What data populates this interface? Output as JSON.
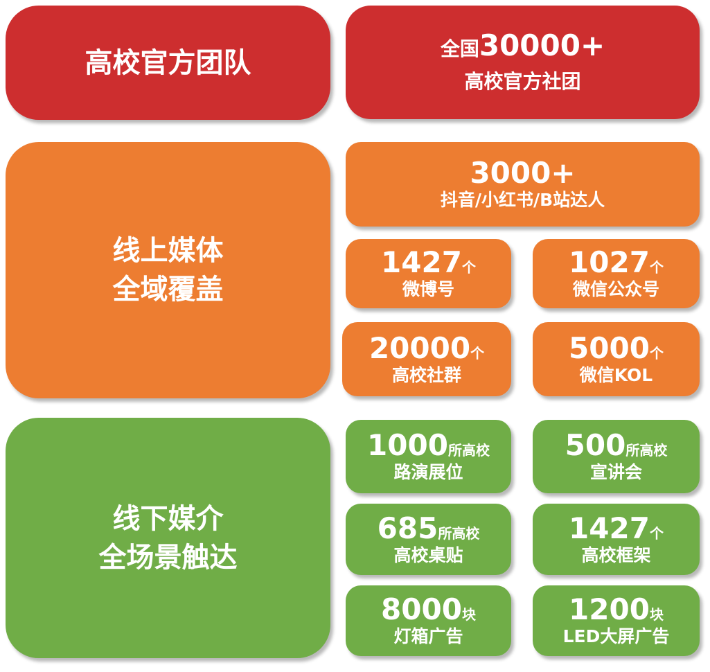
{
  "colors": {
    "red": "#CD2E2F",
    "orange": "#ED7D31",
    "green": "#70AD47"
  },
  "sections": {
    "official": {
      "title": "高校官方团队",
      "tile": {
        "prefix": "全国",
        "number": "30000+",
        "label": "高校官方社团"
      }
    },
    "online": {
      "title_line1": "线上媒体",
      "title_line2": "全域覆盖",
      "wide_tile": {
        "number": "3000+",
        "label": "抖音/小红书/B站达人"
      },
      "tiles": [
        {
          "number": "1427",
          "unit": "个",
          "label": "微博号"
        },
        {
          "number": "1027",
          "unit": "个",
          "label": "微信公众号"
        },
        {
          "number": "20000",
          "unit": "个",
          "label": "高校社群"
        },
        {
          "number": "5000",
          "unit": "个",
          "label": "微信KOL"
        }
      ]
    },
    "offline": {
      "title_line1": "线下媒介",
      "title_line2": "全场景触达",
      "tiles": [
        {
          "number": "1000",
          "unit": "所高校",
          "label": "路演展位"
        },
        {
          "number": "500",
          "unit": "所高校",
          "label": "宣讲会"
        },
        {
          "number": "685",
          "unit": "所高校",
          "label": "高校桌贴"
        },
        {
          "number": "1427",
          "unit": "个",
          "label": "高校框架"
        },
        {
          "number": "8000",
          "unit": "块",
          "label": "灯箱广告"
        },
        {
          "number": "1200",
          "unit": "块",
          "label": "LED大屏广告"
        }
      ]
    }
  }
}
